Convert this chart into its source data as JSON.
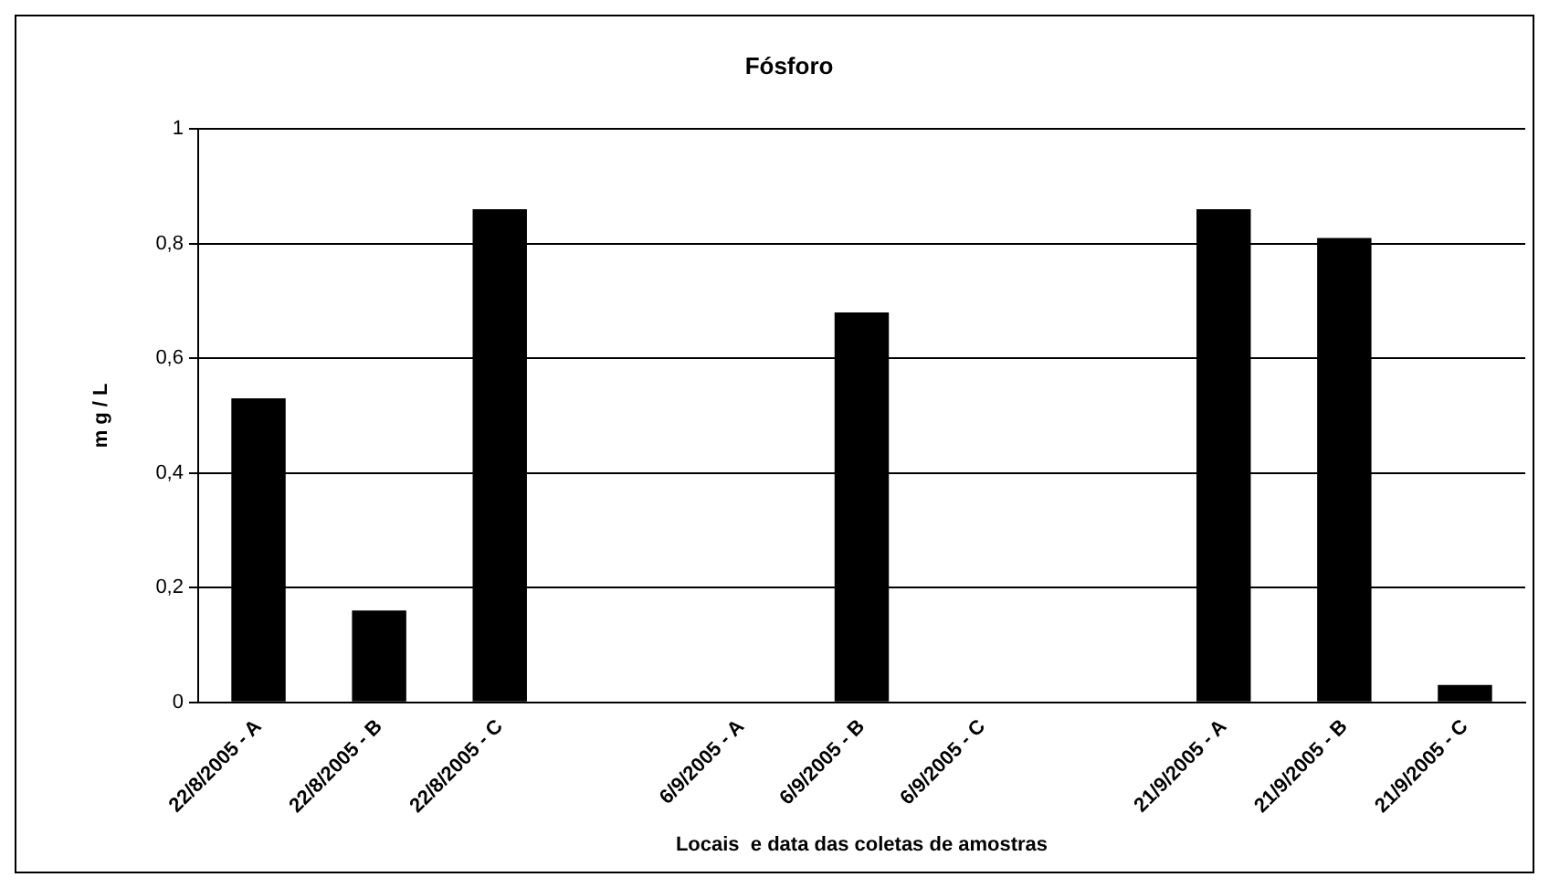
{
  "chart_data": {
    "type": "bar",
    "title": "Fósforo",
    "xlabel": "Locais  e data das coletas de amostras",
    "ylabel": "m g / L",
    "categories": [
      "22/8/2005 - A",
      "22/8/2005 - B",
      "22/8/2005 - C",
      null,
      "6/9/2005 - A",
      "6/9/2005 - B",
      "6/9/2005 - C",
      null,
      "21/9/2005 - A",
      "21/9/2005 - B",
      "21/9/2005 - C"
    ],
    "values": [
      0.53,
      0.16,
      0.86,
      null,
      0,
      0.68,
      0,
      null,
      0.86,
      0.81,
      0.03
    ],
    "color": "#000000",
    "ylim": [
      0,
      1
    ],
    "yticks": [
      0,
      {
        "value": 0.2,
        "label": "0,2"
      },
      {
        "value": 0.4,
        "label": "0,4"
      },
      {
        "value": 0.6,
        "label": "0,6"
      },
      {
        "value": 0.8,
        "label": "0,8"
      },
      1
    ],
    "grid": "y",
    "legend": false
  }
}
